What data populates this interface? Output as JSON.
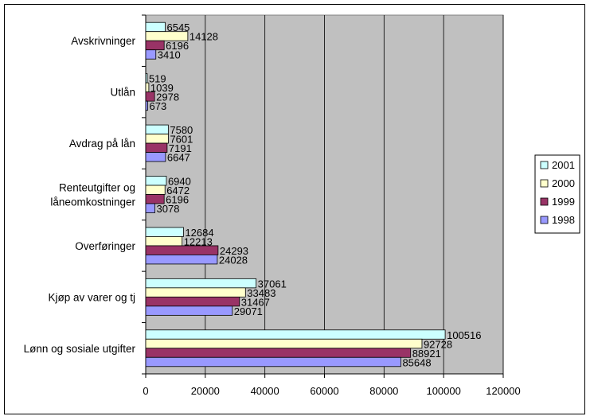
{
  "chart_data": {
    "type": "bar",
    "orientation": "horizontal",
    "categories": [
      "Avskrivninger",
      "Utlån",
      "Avdrag på lån",
      "Renteutgifter og låneomkostninger",
      "Overføringer",
      "Kjøp av varer og tj",
      "Lønn og sosiale utgifter"
    ],
    "category_lines": [
      [
        "Avskrivninger"
      ],
      [
        "Utlån"
      ],
      [
        "Avdrag på lån"
      ],
      [
        "Renteutgifter og",
        "låneomkostninger"
      ],
      [
        "Overføringer"
      ],
      [
        "Kjøp av varer og tj"
      ],
      [
        "Lønn og sosiale utgifter"
      ]
    ],
    "series": [
      {
        "name": "2001",
        "color": "#ccffff",
        "values": [
          6545,
          519,
          7580,
          6940,
          12684,
          37061,
          100516
        ]
      },
      {
        "name": "2000",
        "color": "#ffffcc",
        "values": [
          14128,
          1039,
          7601,
          6472,
          12213,
          33483,
          92728
        ]
      },
      {
        "name": "1999",
        "color": "#993366",
        "values": [
          6196,
          2978,
          7191,
          6196,
          24293,
          31467,
          88921
        ]
      },
      {
        "name": "1998",
        "color": "#9999ff",
        "values": [
          3410,
          673,
          6647,
          3078,
          24028,
          29071,
          85648
        ]
      }
    ],
    "xlim": [
      0,
      120000
    ],
    "xticks": [
      "0",
      "20000",
      "40000",
      "60000",
      "80000",
      "100000",
      "120000"
    ],
    "grid": true,
    "plot_background": "#c0c0c0",
    "legend_position": "right",
    "data_labels": true
  }
}
